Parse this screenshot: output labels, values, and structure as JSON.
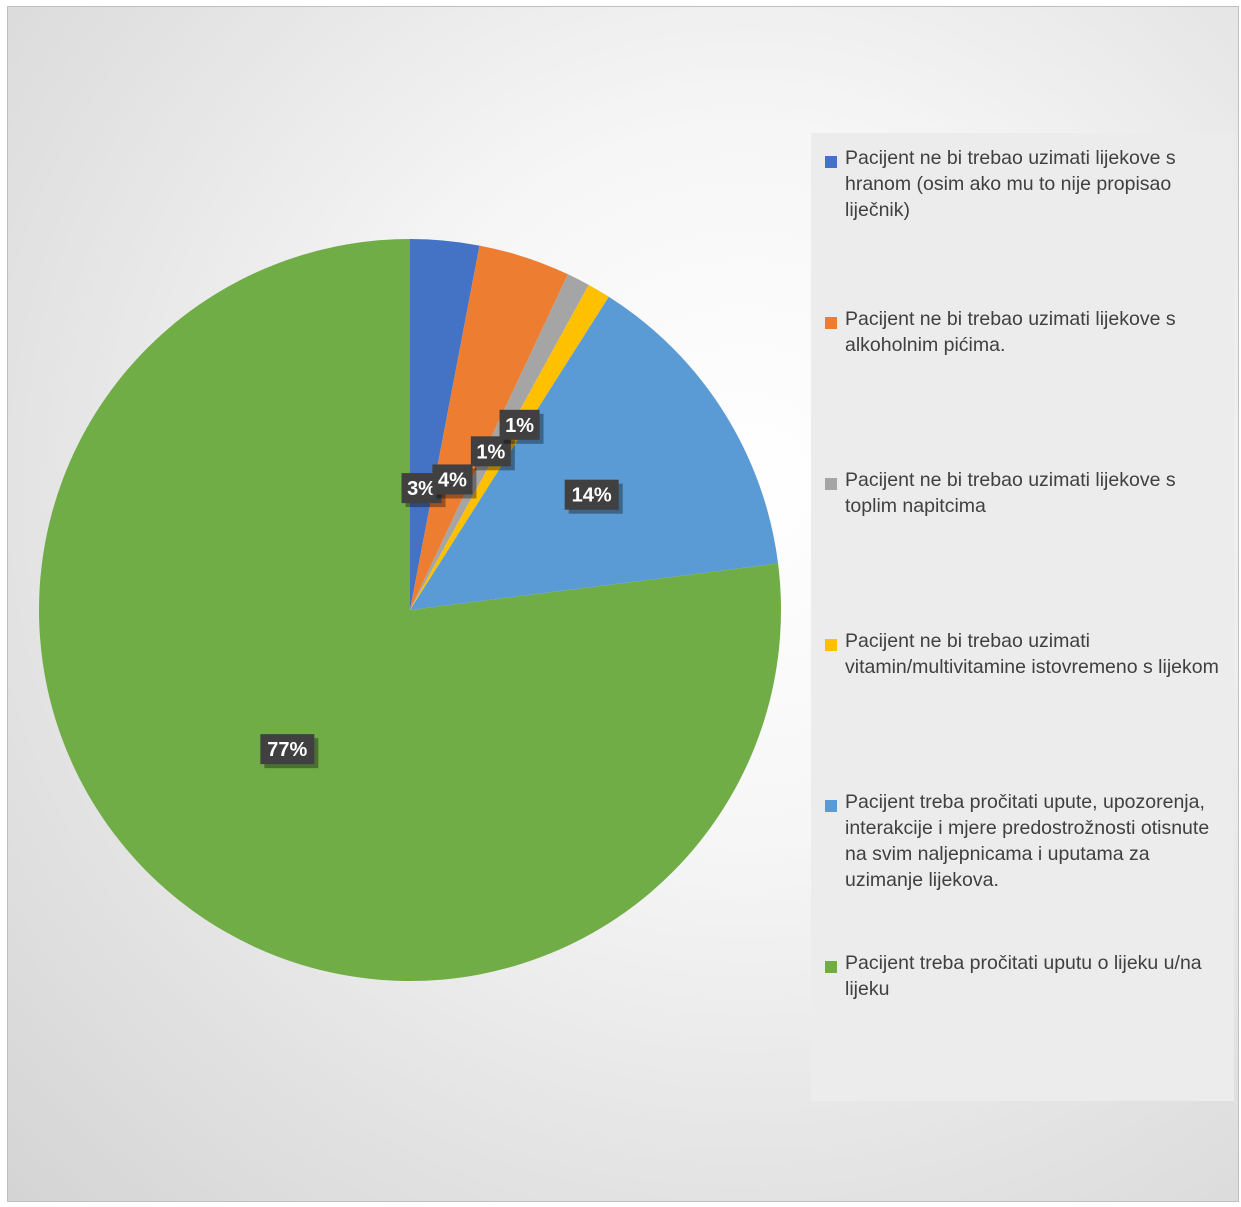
{
  "chart_data": {
    "type": "pie",
    "title": "",
    "legend_position": "right",
    "slices": [
      {
        "label": "Pacijent ne bi trebao uzimati lijekove s hranom (osim ako mu to nije propisao liječnik)",
        "value": 3,
        "display": "3%",
        "color": "#4472C4"
      },
      {
        "label": "Pacijent ne bi trebao uzimati lijekove s alkoholnim pićima.",
        "value": 4,
        "display": "4%",
        "color": "#ED7D31"
      },
      {
        "label": "Pacijent ne bi trebao uzimati lijekove s toplim napitcima",
        "value": 1,
        "display": "1%",
        "color": "#A5A5A5"
      },
      {
        "label": "Pacijent ne bi trebao uzimati vitamin/multivitamine istovremeno s lijekom",
        "value": 1,
        "display": "1%",
        "color": "#FFC000"
      },
      {
        "label": "Pacijent treba pročitati upute, upozorenja, interakcije i mjere predostrožnosti otisnute na svim naljepnicama i uputama za uzimanje lijekova.",
        "value": 14,
        "display": "14%",
        "color": "#5B9BD5"
      },
      {
        "label": "Pacijent treba pročitati uputu o lijeku u/na lijeku",
        "value": 77,
        "display": "77%",
        "color": "#70AD47"
      }
    ]
  }
}
